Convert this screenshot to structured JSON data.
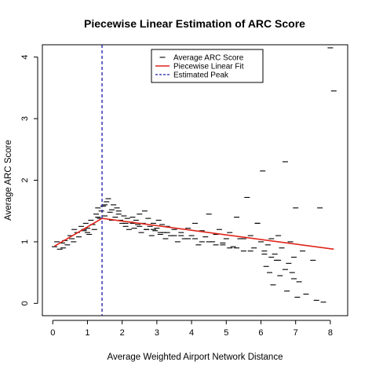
{
  "chart_data": {
    "type": "scatter",
    "title": "Piecewise Linear Estimation of ARC Score",
    "xlabel": "Average Weighted Airport Network Distance",
    "ylabel": "Average ARC Score",
    "xlim": [
      -0.3,
      8.5
    ],
    "ylim": [
      -0.2,
      4.2
    ],
    "x_ticks": [
      0,
      1,
      2,
      3,
      4,
      5,
      6,
      7,
      8
    ],
    "y_ticks": [
      0,
      1,
      2,
      3,
      4
    ],
    "grid": false,
    "legend_position": "top-center",
    "legend": [
      {
        "label": "Average ARC Score",
        "style": "dash-marker",
        "color": "#000000"
      },
      {
        "label": "Piecewise Linear Fit",
        "style": "solid-line",
        "color": "#e0241b"
      },
      {
        "label": "Estimated Peak",
        "style": "dashed-line",
        "color": "#1a1aaa"
      }
    ],
    "series": [
      {
        "style": "dash-marker",
        "color": "#000000",
        "x": [
          0.05,
          0.12,
          0.2,
          0.28,
          0.35,
          0.42,
          0.5,
          0.55,
          0.62,
          0.7,
          0.75,
          0.82,
          0.9,
          0.95,
          1.0,
          1.05,
          1.1,
          1.15,
          1.2,
          1.25,
          1.3,
          1.35,
          1.4,
          1.45,
          1.5,
          1.55,
          1.6,
          1.65,
          1.7,
          1.75,
          1.8,
          1.85,
          1.9,
          1.95,
          2.0,
          2.05,
          2.1,
          2.15,
          2.2,
          2.25,
          2.3,
          2.35,
          2.4,
          2.45,
          2.5,
          2.55,
          2.6,
          2.65,
          2.7,
          2.75,
          2.8,
          2.85,
          2.9,
          2.95,
          3.0,
          3.05,
          3.1,
          3.15,
          3.2,
          3.25,
          3.3,
          3.4,
          3.5,
          3.6,
          3.7,
          3.8,
          3.9,
          4.0,
          4.1,
          4.2,
          4.3,
          4.4,
          4.5,
          4.6,
          4.7,
          4.8,
          4.9,
          5.0,
          5.1,
          5.2,
          5.3,
          5.4,
          5.5,
          5.6,
          5.7,
          5.8,
          5.9,
          6.0,
          6.05,
          6.1,
          6.15,
          6.2,
          6.25,
          6.3,
          6.35,
          6.4,
          6.45,
          6.5,
          6.55,
          6.6,
          6.7,
          6.75,
          6.8,
          6.85,
          6.9,
          6.95,
          7.0,
          7.05,
          7.1,
          7.2,
          7.3,
          7.5,
          7.6,
          7.7,
          7.8,
          8.0,
          8.1,
          0.3,
          0.6,
          1.0,
          1.5,
          1.9,
          2.3,
          2.7,
          3.1,
          3.5,
          3.9,
          4.3,
          4.7,
          5.1,
          5.5,
          5.9,
          6.3,
          6.7,
          6.95,
          0.9,
          1.3,
          1.7,
          2.1,
          2.5,
          2.9,
          3.3,
          3.7,
          4.1,
          4.5,
          4.9,
          5.3,
          5.7,
          6.1,
          6.5
        ],
        "y": [
          0.92,
          1.0,
          0.88,
          0.98,
          1.02,
          0.95,
          1.1,
          1.05,
          1.2,
          1.15,
          1.08,
          1.25,
          1.18,
          1.3,
          1.22,
          1.12,
          1.35,
          1.28,
          1.2,
          1.45,
          1.55,
          1.38,
          1.5,
          1.58,
          1.42,
          1.65,
          1.7,
          1.48,
          1.52,
          1.6,
          1.4,
          1.55,
          1.45,
          1.35,
          1.3,
          1.42,
          1.25,
          1.38,
          1.2,
          1.32,
          1.4,
          1.22,
          1.35,
          1.28,
          1.45,
          1.15,
          1.3,
          1.5,
          1.2,
          1.38,
          1.25,
          1.1,
          1.3,
          1.18,
          1.22,
          1.35,
          1.12,
          1.28,
          1.15,
          1.05,
          1.25,
          1.1,
          1.2,
          1.0,
          1.15,
          1.05,
          1.22,
          1.1,
          1.3,
          0.95,
          1.18,
          1.08,
          1.45,
          1.0,
          1.12,
          1.2,
          0.98,
          1.05,
          1.15,
          0.92,
          1.4,
          1.05,
          0.85,
          1.72,
          1.1,
          0.9,
          1.3,
          1.0,
          2.15,
          0.85,
          0.6,
          0.95,
          0.5,
          1.05,
          0.3,
          0.8,
          0.7,
          1.1,
          0.45,
          0.9,
          2.3,
          0.2,
          0.65,
          1.0,
          0.5,
          0.75,
          1.55,
          0.1,
          0.35,
          0.85,
          0.15,
          0.7,
          0.05,
          1.55,
          0.02,
          4.15,
          3.45,
          0.9,
          1.0,
          1.15,
          1.6,
          1.5,
          1.3,
          1.2,
          1.15,
          1.1,
          1.05,
          1.0,
          0.95,
          0.9,
          1.05,
          1.3,
          0.75,
          0.55,
          0.4,
          1.2,
          1.4,
          1.35,
          1.3,
          1.25,
          1.2,
          1.15,
          1.1,
          1.05,
          1.0,
          0.95,
          0.9,
          0.85,
          0.8,
          0.7
        ]
      },
      {
        "name": "Piecewise Linear Fit",
        "style": "line",
        "color": "#e0241b",
        "x": [
          0.05,
          1.42,
          8.1
        ],
        "y": [
          0.93,
          1.38,
          0.88
        ]
      }
    ],
    "peak_x": 1.42
  }
}
